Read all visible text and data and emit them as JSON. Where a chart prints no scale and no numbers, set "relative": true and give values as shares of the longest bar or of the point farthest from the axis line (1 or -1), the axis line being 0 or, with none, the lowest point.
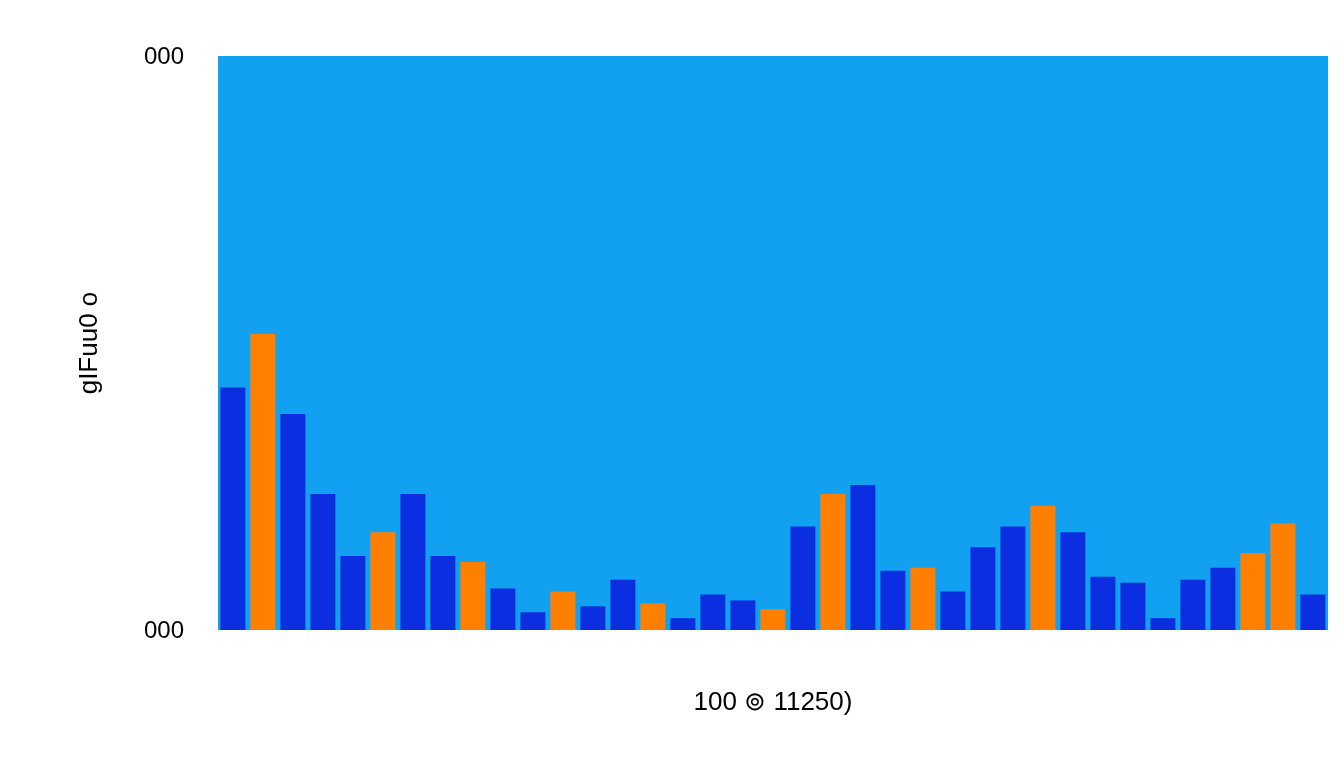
{
  "chart_data": {
    "type": "bar",
    "xlabel": "100 ⊚ 11250)",
    "ylabel": "gIFuu0 o",
    "relative": true,
    "categories": [
      null,
      null,
      null,
      null,
      null,
      null,
      null,
      null,
      null,
      null,
      null,
      null,
      null,
      null,
      null,
      null,
      null,
      null,
      null,
      null,
      null,
      null,
      null,
      null,
      null,
      null,
      null,
      null,
      null,
      null,
      null,
      null,
      null,
      null,
      null,
      null,
      null
    ],
    "values": [
      0.82,
      1,
      0.73,
      0.46,
      0.25,
      0.33,
      0.46,
      0.25,
      0.23,
      0.14,
      0.06,
      0.13,
      0.08,
      0.17,
      0.09,
      0.04,
      0.12,
      0.1,
      0.07,
      0.35,
      0.46,
      0.49,
      0.2,
      0.21,
      0.13,
      0.28,
      0.35,
      0.42,
      0.33,
      0.18,
      0.16,
      0.04,
      0.17,
      0.21,
      0.26,
      0.36,
      0.12
    ],
    "colors": [
      "#0a2ee0",
      "#ff8000",
      "#0a2ee0",
      "#0a2ee0",
      "#0a2ee0",
      "#ff8000",
      "#0a2ee0",
      "#0a2ee0",
      "#ff8000",
      "#0a2ee0",
      "#0a2ee0",
      "#ff8000",
      "#0a2ee0",
      "#0a2ee0",
      "#ff8000",
      "#0a2ee0",
      "#0a2ee0",
      "#0a2ee0",
      "#ff8000",
      "#0a2ee0",
      "#ff8000",
      "#0a2ee0",
      "#0a2ee0",
      "#ff8000",
      "#0a2ee0",
      "#0a2ee0",
      "#0a2ee0",
      "#ff8000",
      "#0a2ee0",
      "#0a2ee0",
      "#0a2ee0",
      "#0a2ee0",
      "#0a2ee0",
      "#0a2ee0",
      "#ff8000",
      "#ff8000",
      "#0a2ee0"
    ],
    "annotations": [
      "000",
      "000"
    ]
  }
}
